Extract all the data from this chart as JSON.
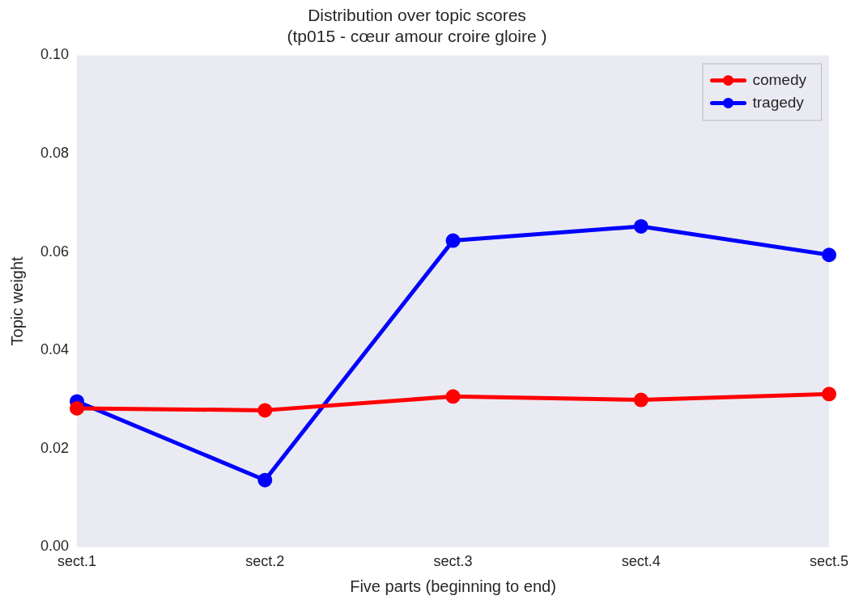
{
  "chart_data": {
    "type": "line",
    "title": "Distribution over topic scores",
    "subtitle": "(tp015 - cœur amour croire gloire )",
    "xlabel": "Five parts (beginning to end)",
    "ylabel": "Topic weight",
    "categories": [
      "sect.1",
      "sect.2",
      "sect.3",
      "sect.4",
      "sect.5"
    ],
    "series": [
      {
        "name": "comedy",
        "color": "#ff0000",
        "values": [
          0.0282,
          0.0278,
          0.0306,
          0.0299,
          0.0311
        ]
      },
      {
        "name": "tragedy",
        "color": "#0000ff",
        "values": [
          0.0296,
          0.0136,
          0.0623,
          0.0652,
          0.0594
        ]
      }
    ],
    "ylim": [
      0,
      0.1
    ],
    "yticks": [
      {
        "value": 0,
        "label": "0.00"
      },
      0.02,
      0.04,
      0.06,
      0.08,
      {
        "value": 0.1,
        "label": "0.10"
      }
    ],
    "grid": false,
    "legend": "top right",
    "marker": "circle",
    "line_style": "solid"
  }
}
